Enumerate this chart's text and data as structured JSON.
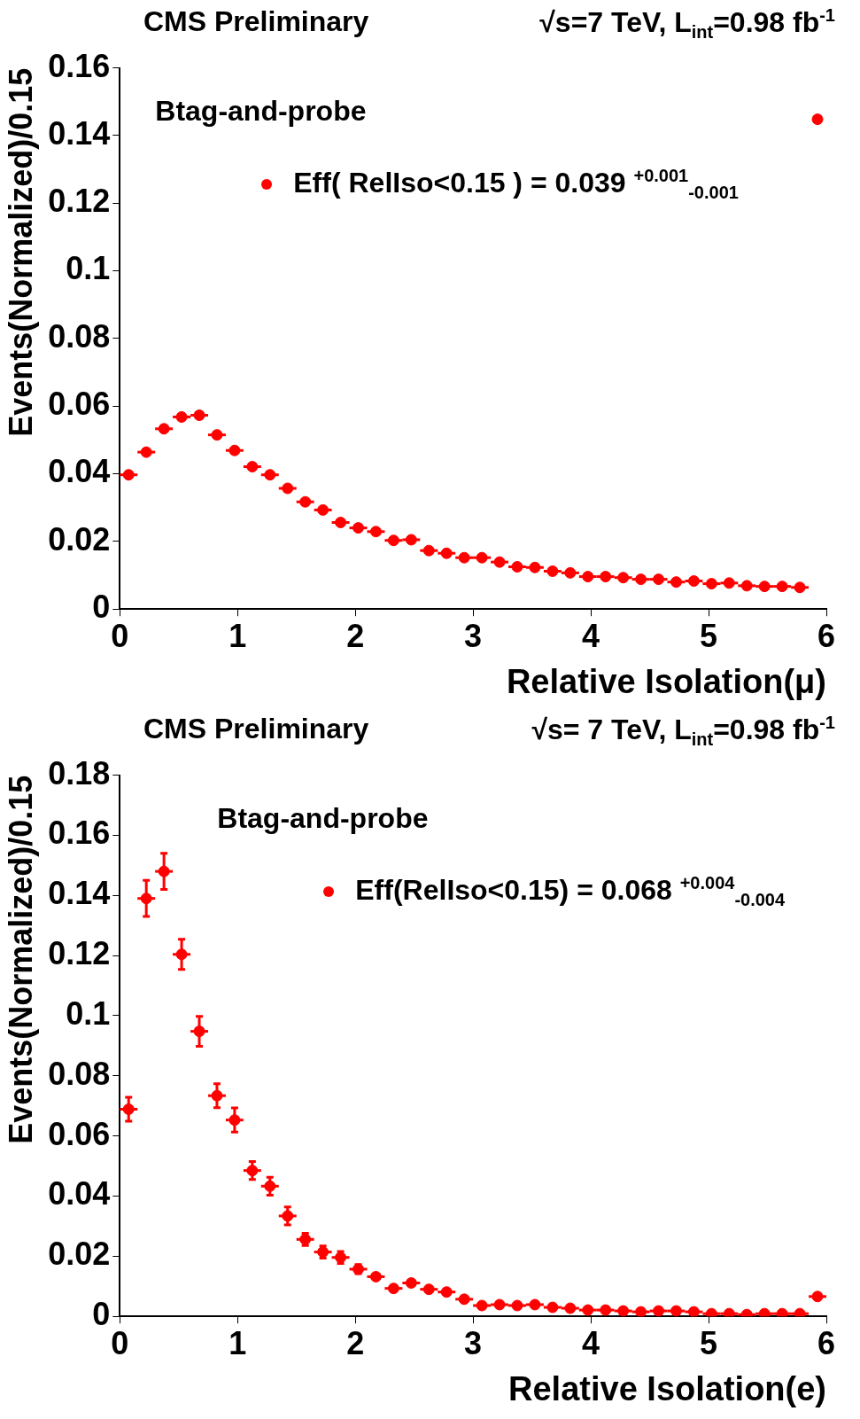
{
  "chart_data": [
    {
      "type": "scatter",
      "title": "CMS Preliminary",
      "subtitle": "√s=7 TeV, L$_{int}$=0.98 fb$^{-1}$",
      "xlabel": "Relative Isolation(μ)",
      "ylabel": "Events(Normalized)/0.15",
      "annotations": [
        "Btag-and-probe"
      ],
      "marker": "circle",
      "legend": "top",
      "grid": false,
      "xlim": [
        0,
        6
      ],
      "ylim": [
        0,
        0.16
      ],
      "xticks": [
        0,
        1,
        2,
        3,
        4,
        5,
        6
      ],
      "yticks": [
        0,
        0.02,
        0.04,
        0.06,
        0.08,
        0.1,
        0.12,
        0.14,
        0.16
      ],
      "x": [
        0.075,
        0.225,
        0.375,
        0.525,
        0.675,
        0.825,
        0.975,
        1.125,
        1.275,
        1.425,
        1.575,
        1.725,
        1.875,
        2.025,
        2.175,
        2.325,
        2.475,
        2.625,
        2.775,
        2.925,
        3.075,
        3.225,
        3.375,
        3.525,
        3.675,
        3.825,
        3.975,
        4.125,
        4.275,
        4.425,
        4.575,
        4.725,
        4.875,
        5.025,
        5.175,
        5.325,
        5.475,
        5.625,
        5.775,
        5.925
      ],
      "series": [
        {
          "name": "Eff( RelIso<0.15 ) = 0.039 $^{+0.001}$$_{-0.001}$",
          "color": "#ff0000",
          "values": [
            0.0397,
            0.0464,
            0.0533,
            0.0568,
            0.0573,
            0.0515,
            0.0469,
            0.0421,
            0.0397,
            0.0357,
            0.0317,
            0.0293,
            0.0256,
            0.024,
            0.0229,
            0.0203,
            0.0205,
            0.0173,
            0.0165,
            0.0152,
            0.0152,
            0.0139,
            0.0125,
            0.0123,
            0.0112,
            0.0107,
            0.0096,
            0.0096,
            0.0093,
            0.0088,
            0.0088,
            0.008,
            0.0083,
            0.0075,
            0.0077,
            0.0069,
            0.0067,
            0.0067,
            0.0064,
            0.1448
          ],
          "xerrors": [
            0.075,
            0.075,
            0.075,
            0.075,
            0.075,
            0.075,
            0.075,
            0.075,
            0.075,
            0.075,
            0.075,
            0.075,
            0.075,
            0.075,
            0.075,
            0.075,
            0.075,
            0.075,
            0.075,
            0.075,
            0.075,
            0.075,
            0.075,
            0.075,
            0.075,
            0.075,
            0.075,
            0.075,
            0.075,
            0.075,
            0.075,
            0.075,
            0.075,
            0.075,
            0.075,
            0.075,
            0.075,
            0.075,
            0.075,
            null
          ]
        }
      ]
    },
    {
      "type": "scatter",
      "title": "CMS Preliminary",
      "subtitle": "√s= 7 TeV, L$_{int}$=0.98 fb$^{-1}$",
      "xlabel": "Relative Isolation(e)",
      "ylabel": "Events(Normalized)/0.15",
      "annotations": [
        "Btag-and-probe"
      ],
      "marker": "circle",
      "legend": "top",
      "grid": false,
      "xlim": [
        0,
        6
      ],
      "ylim": [
        0,
        0.18
      ],
      "xticks": [
        0,
        1,
        2,
        3,
        4,
        5,
        6
      ],
      "yticks": [
        0,
        0.02,
        0.04,
        0.06,
        0.08,
        0.1,
        0.12,
        0.14,
        0.16,
        0.18
      ],
      "x": [
        0.075,
        0.225,
        0.375,
        0.525,
        0.675,
        0.825,
        0.975,
        1.125,
        1.275,
        1.425,
        1.575,
        1.725,
        1.875,
        2.025,
        2.175,
        2.325,
        2.475,
        2.625,
        2.775,
        2.925,
        3.075,
        3.225,
        3.375,
        3.525,
        3.675,
        3.825,
        3.975,
        4.125,
        4.275,
        4.425,
        4.575,
        4.725,
        4.875,
        5.025,
        5.175,
        5.325,
        5.475,
        5.625,
        5.775,
        5.925
      ],
      "series": [
        {
          "name": "Eff(RelIso<0.15) = 0.068 $^{+0.004}$$_{-0.004}$",
          "color": "#ff0000",
          "values": [
            0.0689,
            0.139,
            0.148,
            0.1204,
            0.0948,
            0.0734,
            0.0653,
            0.0485,
            0.0433,
            0.0334,
            0.0256,
            0.0214,
            0.0196,
            0.0157,
            0.0132,
            0.0093,
            0.0111,
            0.009,
            0.0081,
            0.0057,
            0.0036,
            0.0039,
            0.0036,
            0.0039,
            0.003,
            0.0027,
            0.0021,
            0.0021,
            0.0018,
            0.0015,
            0.0018,
            0.0018,
            0.0015,
            0.0009,
            0.0009,
            0.0006,
            0.0009,
            0.0009,
            0.0009,
            0.0066
          ],
          "errors": [
            0.004,
            0.006,
            0.006,
            0.005,
            0.005,
            0.004,
            0.004,
            0.003,
            0.003,
            0.003,
            0.002,
            0.002,
            0.002,
            0.0015,
            null,
            null,
            null,
            null,
            null,
            null,
            null,
            null,
            null,
            null,
            null,
            null,
            null,
            null,
            null,
            null,
            null,
            null,
            null,
            null,
            null,
            null,
            null,
            null,
            null,
            null
          ],
          "xerrors": [
            0.075,
            0.075,
            0.075,
            0.075,
            0.075,
            0.075,
            0.075,
            0.075,
            0.075,
            0.075,
            0.075,
            0.075,
            0.075,
            0.075,
            0.075,
            0.075,
            0.075,
            0.075,
            0.075,
            0.075,
            0.075,
            0.075,
            0.075,
            0.075,
            0.075,
            0.075,
            0.075,
            0.075,
            0.075,
            0.075,
            0.075,
            0.075,
            0.075,
            0.075,
            0.075,
            0.075,
            0.075,
            0.075,
            0.075,
            0.075
          ]
        }
      ]
    }
  ]
}
